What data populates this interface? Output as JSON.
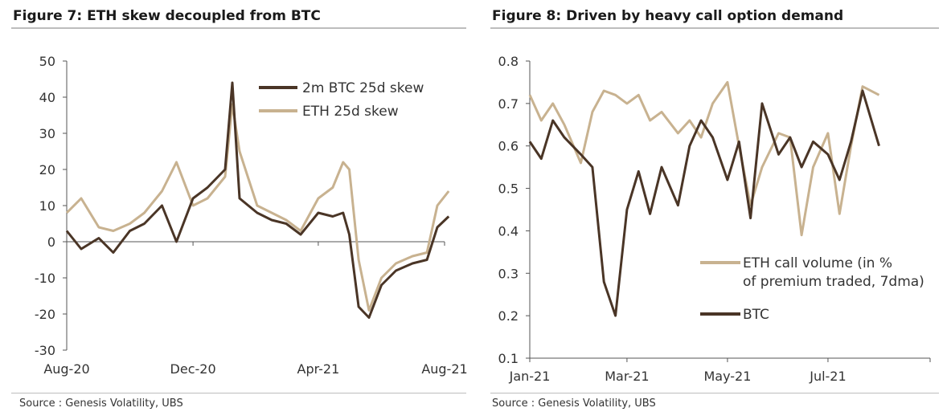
{
  "figures": [
    {
      "title": "Figure 7: ETH skew decoupled from BTC",
      "source": "Source : Genesis Volatility, UBS"
    },
    {
      "title": "Figure 8: Driven by heavy call option demand",
      "source": "Source : Genesis Volatility, UBS"
    }
  ],
  "chart_data": [
    {
      "type": "line",
      "title": "Figure 7: ETH skew decoupled from BTC",
      "xlabel": "",
      "ylabel": "",
      "x_ticks": [
        "Aug-20",
        "Dec-20",
        "Apr-21",
        "Aug-21"
      ],
      "y_ticks": [
        "50",
        "40",
        "30",
        "20",
        "10",
        "0",
        "-10",
        "-20",
        "-30"
      ],
      "ylim": [
        -30,
        50
      ],
      "xlim": [
        "2020-08",
        "2021-08"
      ],
      "legend_position": "top-right",
      "colors": {
        "btc": "#4a3526",
        "eth": "#c8b290"
      },
      "series": [
        {
          "name": "2m BTC 25d skew",
          "color": "#4a3526",
          "x": [
            "2020-08-01",
            "2020-08-15",
            "2020-09-01",
            "2020-09-15",
            "2020-10-01",
            "2020-10-15",
            "2020-11-01",
            "2020-11-15",
            "2020-12-01",
            "2020-12-15",
            "2021-01-01",
            "2021-01-08",
            "2021-01-15",
            "2021-02-01",
            "2021-02-15",
            "2021-03-01",
            "2021-03-15",
            "2021-04-01",
            "2021-04-15",
            "2021-04-25",
            "2021-05-01",
            "2021-05-10",
            "2021-05-20",
            "2021-06-01",
            "2021-06-15",
            "2021-07-01",
            "2021-07-15",
            "2021-07-25",
            "2021-08-05"
          ],
          "values": [
            3,
            -2,
            1,
            -3,
            3,
            5,
            10,
            0,
            12,
            15,
            20,
            44,
            12,
            8,
            6,
            5,
            2,
            8,
            7,
            8,
            2,
            -18,
            -21,
            -12,
            -8,
            -6,
            -5,
            4,
            7
          ]
        },
        {
          "name": "ETH 25d skew",
          "color": "#c8b290",
          "x": [
            "2020-08-01",
            "2020-08-15",
            "2020-09-01",
            "2020-09-15",
            "2020-10-01",
            "2020-10-15",
            "2020-11-01",
            "2020-11-15",
            "2020-12-01",
            "2020-12-15",
            "2021-01-01",
            "2021-01-08",
            "2021-01-15",
            "2021-02-01",
            "2021-02-15",
            "2021-03-01",
            "2021-03-15",
            "2021-04-01",
            "2021-04-15",
            "2021-04-25",
            "2021-05-01",
            "2021-05-10",
            "2021-05-20",
            "2021-06-01",
            "2021-06-15",
            "2021-07-01",
            "2021-07-15",
            "2021-07-25",
            "2021-08-05"
          ],
          "values": [
            8,
            12,
            4,
            3,
            5,
            8,
            14,
            22,
            10,
            12,
            18,
            38,
            25,
            10,
            8,
            6,
            3,
            12,
            15,
            22,
            20,
            -5,
            -19,
            -10,
            -6,
            -4,
            -3,
            10,
            14
          ]
        }
      ]
    },
    {
      "type": "line",
      "title": "Figure 8: Driven by heavy call option demand",
      "xlabel": "",
      "ylabel": "",
      "x_ticks": [
        "Jan-21",
        "Mar-21",
        "May-21",
        "Jul-21"
      ],
      "y_ticks": [
        "0.8",
        "0.7",
        "0.6",
        "0.5",
        "0.4",
        "0.3",
        "0.2",
        "0.1"
      ],
      "ylim": [
        0.1,
        0.8
      ],
      "xlim": [
        "2021-01",
        "2021-09"
      ],
      "legend_position": "bottom-right",
      "colors": {
        "eth": "#c8b290",
        "btc": "#4a3526"
      },
      "series": [
        {
          "name": "ETH call volume (in % of premium traded, 7dma)",
          "color": "#c8b290",
          "x": [
            "2021-01-01",
            "2021-01-08",
            "2021-01-15",
            "2021-01-22",
            "2021-02-01",
            "2021-02-08",
            "2021-02-15",
            "2021-02-22",
            "2021-03-01",
            "2021-03-08",
            "2021-03-15",
            "2021-03-22",
            "2021-04-01",
            "2021-04-08",
            "2021-04-15",
            "2021-04-22",
            "2021-05-01",
            "2021-05-08",
            "2021-05-15",
            "2021-05-22",
            "2021-06-01",
            "2021-06-08",
            "2021-06-15",
            "2021-06-22",
            "2021-07-01",
            "2021-07-08",
            "2021-07-15",
            "2021-07-22",
            "2021-08-01"
          ],
          "values": [
            0.72,
            0.66,
            0.7,
            0.65,
            0.56,
            0.68,
            0.73,
            0.72,
            0.7,
            0.72,
            0.66,
            0.68,
            0.63,
            0.66,
            0.62,
            0.7,
            0.75,
            0.6,
            0.46,
            0.55,
            0.63,
            0.62,
            0.39,
            0.55,
            0.63,
            0.44,
            0.6,
            0.74,
            0.72
          ]
        },
        {
          "name": "BTC",
          "color": "#4a3526",
          "x": [
            "2021-01-01",
            "2021-01-08",
            "2021-01-15",
            "2021-01-22",
            "2021-02-01",
            "2021-02-08",
            "2021-02-15",
            "2021-02-22",
            "2021-03-01",
            "2021-03-08",
            "2021-03-15",
            "2021-03-22",
            "2021-04-01",
            "2021-04-08",
            "2021-04-15",
            "2021-04-22",
            "2021-05-01",
            "2021-05-08",
            "2021-05-15",
            "2021-05-22",
            "2021-06-01",
            "2021-06-08",
            "2021-06-15",
            "2021-06-22",
            "2021-07-01",
            "2021-07-08",
            "2021-07-15",
            "2021-07-22",
            "2021-08-01"
          ],
          "values": [
            0.61,
            0.57,
            0.66,
            0.62,
            0.58,
            0.55,
            0.28,
            0.2,
            0.45,
            0.54,
            0.44,
            0.55,
            0.46,
            0.6,
            0.66,
            0.62,
            0.52,
            0.61,
            0.43,
            0.7,
            0.58,
            0.62,
            0.55,
            0.61,
            0.58,
            0.52,
            0.61,
            0.73,
            0.6
          ]
        }
      ]
    }
  ]
}
